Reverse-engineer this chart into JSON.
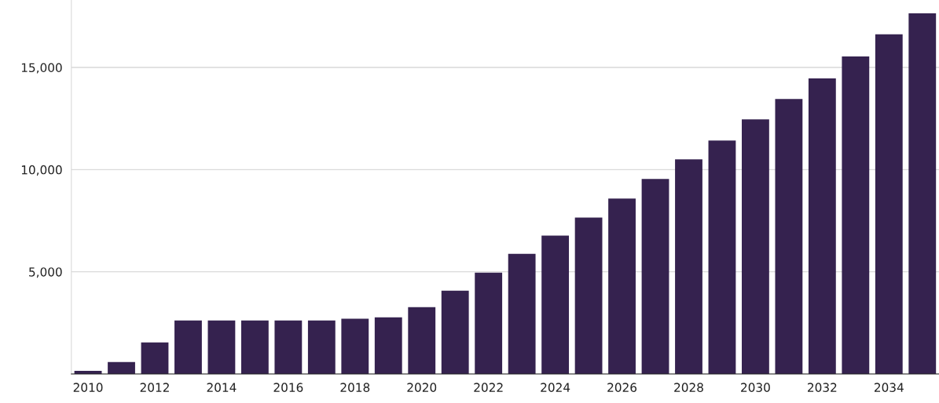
{
  "chart_data": {
    "type": "bar",
    "categories": [
      "2010",
      null,
      "2012",
      null,
      "2014",
      null,
      "2016",
      null,
      "2018",
      null,
      "2020",
      null,
      "2022",
      null,
      "2024",
      null,
      "2026",
      null,
      "2028",
      null,
      "2030",
      null,
      "2032",
      null,
      "2034",
      null
    ],
    "values": [
      150,
      580,
      1540,
      2620,
      2620,
      2620,
      2620,
      2620,
      2700,
      2770,
      3270,
      4080,
      4960,
      5880,
      6770,
      7650,
      8580,
      9540,
      10500,
      11420,
      12460,
      13460,
      14460,
      15540,
      16620,
      17650
    ],
    "color": "#35224f",
    "ylim": [
      0,
      18300
    ],
    "yticks": [
      {
        "value": 0,
        "label": null
      },
      {
        "value": 5000,
        "label": "5,000"
      },
      {
        "value": 10000,
        "label": "10,000"
      },
      {
        "value": 15000,
        "label": "15,000"
      }
    ],
    "grid": "y"
  }
}
